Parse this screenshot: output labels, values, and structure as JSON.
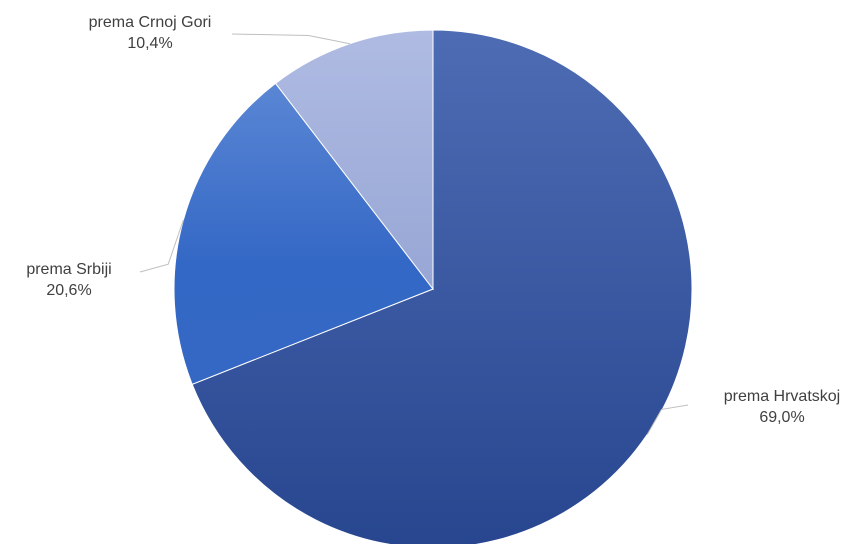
{
  "chart_data": {
    "type": "pie",
    "title": "",
    "slices": [
      {
        "label": "prema Hrvatskoj",
        "value": 69.0,
        "value_label": "69,0%"
      },
      {
        "label": "prema Srbiji",
        "value": 20.6,
        "value_label": "20,6%"
      },
      {
        "label": "prema Crnoj Gori",
        "value": 10.4,
        "value_label": "10,4%"
      }
    ],
    "start": "12 o'clock",
    "direction": "clockwise",
    "legend": "none",
    "data_labels": "outside with leader lines",
    "colors": {
      "prema Hrvatskoj": "#2f4f9f",
      "prema Srbiji": "#4472c4",
      "prema Crnoj Gori": "#a7b3dc",
      "leader_line": "#bfbfbf",
      "label_text": "#404040"
    }
  }
}
